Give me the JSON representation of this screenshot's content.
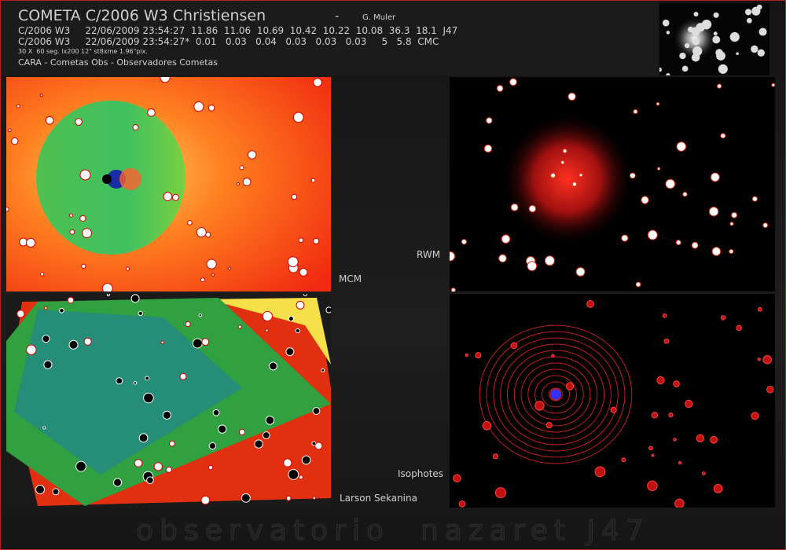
{
  "header": {
    "title": "COMETA C/2006 W3 Christiensen",
    "separator": "-",
    "author": "G. Muler",
    "lines": [
      "C/2006 W3     22/06/2009 23:54:27  11.86  11.06  10.69  10.42  10.22  10.08  36.3  18.1  J47",
      "C/2006 W3     22/06/2009 23:54:27*  0.01   0.03   0.04   0.03   0.03   0.03     5   5.8  CMC"
    ],
    "setup": "30 X  60 seg. lx200 12\" st8xme 1.96\"pix.",
    "credits": "CARA - Cometas Obs - Observadores Cometas"
  },
  "panels": {
    "mcm": "MCM",
    "rwm": "RWM",
    "isophotes": "Isophotes",
    "larson": "Larson Sekanina"
  },
  "footer": "observatorio  nazaret J47"
}
